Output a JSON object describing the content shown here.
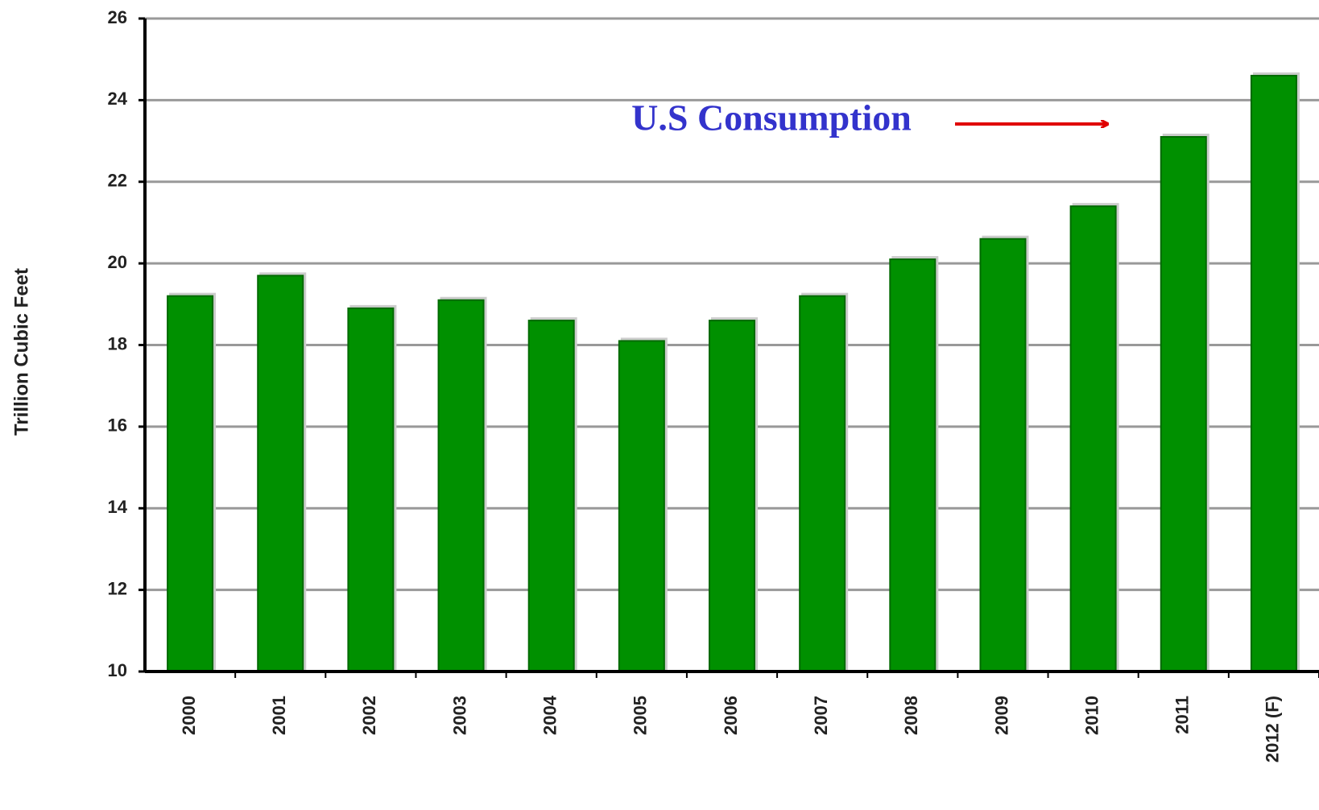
{
  "chart_data": {
    "type": "bar",
    "annotation": "U.S Consumption",
    "y_label": "Trillion Cubic Feet",
    "categories": [
      "2000",
      "2001",
      "2002",
      "2003",
      "2004",
      "2005",
      "2006",
      "2007",
      "2008",
      "2009",
      "2010",
      "2011",
      "2012 (F)"
    ],
    "values": [
      19.2,
      19.7,
      18.9,
      19.1,
      18.6,
      18.1,
      18.6,
      19.2,
      20.1,
      20.6,
      21.4,
      23.1,
      24.6
    ],
    "color": "#009000",
    "ylim": [
      10,
      26
    ],
    "yticks": [
      10,
      12,
      14,
      16,
      18,
      20,
      22,
      24,
      26
    ],
    "grid": true
  }
}
